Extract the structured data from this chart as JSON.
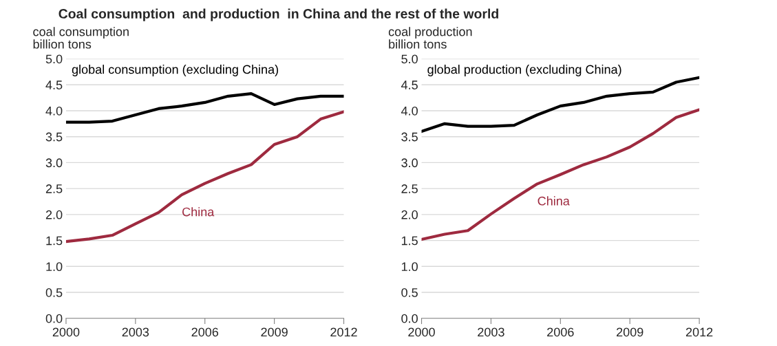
{
  "chart_data": [
    {
      "type": "line",
      "title": "Coal consumption  and production  in China and the rest of the world",
      "ylabel": "coal consumption\nbillion tons",
      "x": [
        2000,
        2001,
        2002,
        2003,
        2004,
        2005,
        2006,
        2007,
        2008,
        2009,
        2010,
        2011,
        2012
      ],
      "series": [
        {
          "name": "global consumption (excluding China)",
          "color": "#000000",
          "values": [
            3.78,
            3.78,
            3.8,
            3.92,
            4.04,
            4.09,
            4.16,
            4.28,
            4.33,
            4.12,
            4.23,
            4.28,
            4.28
          ]
        },
        {
          "name": "China",
          "color": "#9e2a3f",
          "values": [
            1.48,
            1.53,
            1.6,
            1.82,
            2.04,
            2.38,
            2.6,
            2.79,
            2.96,
            3.35,
            3.5,
            3.84,
            3.98
          ]
        }
      ],
      "xlim": [
        2000,
        2012
      ],
      "xticks": [
        2000,
        2003,
        2006,
        2009,
        2012
      ],
      "ylim": [
        0,
        5
      ],
      "yticks": [
        {
          "value": 0,
          "label": "0.0"
        },
        {
          "value": 0.5,
          "label": "0.5"
        },
        {
          "value": 1,
          "label": "1.0"
        },
        {
          "value": 1.5,
          "label": "1.5"
        },
        {
          "value": 2,
          "label": "2.0"
        },
        {
          "value": 2.5,
          "label": "2.5"
        },
        {
          "value": 3,
          "label": "3.0"
        },
        {
          "value": 3.5,
          "label": "3.5"
        },
        {
          "value": 4,
          "label": "4.0"
        },
        {
          "value": 4.5,
          "label": "4.5"
        },
        {
          "value": 5,
          "label": "5.0"
        }
      ],
      "grid": "y",
      "legend": false,
      "marker": "none",
      "line_style": "solid"
    },
    {
      "type": "line",
      "ylabel": "coal production\nbillion tons",
      "x": [
        2000,
        2001,
        2002,
        2003,
        2004,
        2005,
        2006,
        2007,
        2008,
        2009,
        2010,
        2011,
        2012
      ],
      "series": [
        {
          "name": "global production (excluding China)",
          "color": "#000000",
          "values": [
            3.6,
            3.75,
            3.7,
            3.7,
            3.72,
            3.92,
            4.09,
            4.16,
            4.28,
            4.33,
            4.36,
            4.55,
            4.64
          ]
        },
        {
          "name": "China",
          "color": "#9e2a3f",
          "values": [
            1.52,
            1.62,
            1.69,
            2.01,
            2.31,
            2.59,
            2.77,
            2.96,
            3.11,
            3.3,
            3.56,
            3.87,
            4.02
          ]
        }
      ],
      "xlim": [
        2000,
        2012
      ],
      "xticks": [
        2000,
        2003,
        2006,
        2009,
        2012
      ],
      "ylim": [
        0,
        5
      ],
      "yticks": [
        {
          "value": 0,
          "label": "0.0"
        },
        {
          "value": 0.5,
          "label": "0.5"
        },
        {
          "value": 1,
          "label": "1.0"
        },
        {
          "value": 1.5,
          "label": "1.5"
        },
        {
          "value": 2,
          "label": "2.0"
        },
        {
          "value": 2.5,
          "label": "2.5"
        },
        {
          "value": 3,
          "label": "3.0"
        },
        {
          "value": 3.5,
          "label": "3.5"
        },
        {
          "value": 4,
          "label": "4.0"
        },
        {
          "value": 4.5,
          "label": "4.5"
        },
        {
          "value": 5,
          "label": "5.0"
        }
      ],
      "grid": "y",
      "legend": false,
      "marker": "none",
      "line_style": "solid"
    }
  ]
}
